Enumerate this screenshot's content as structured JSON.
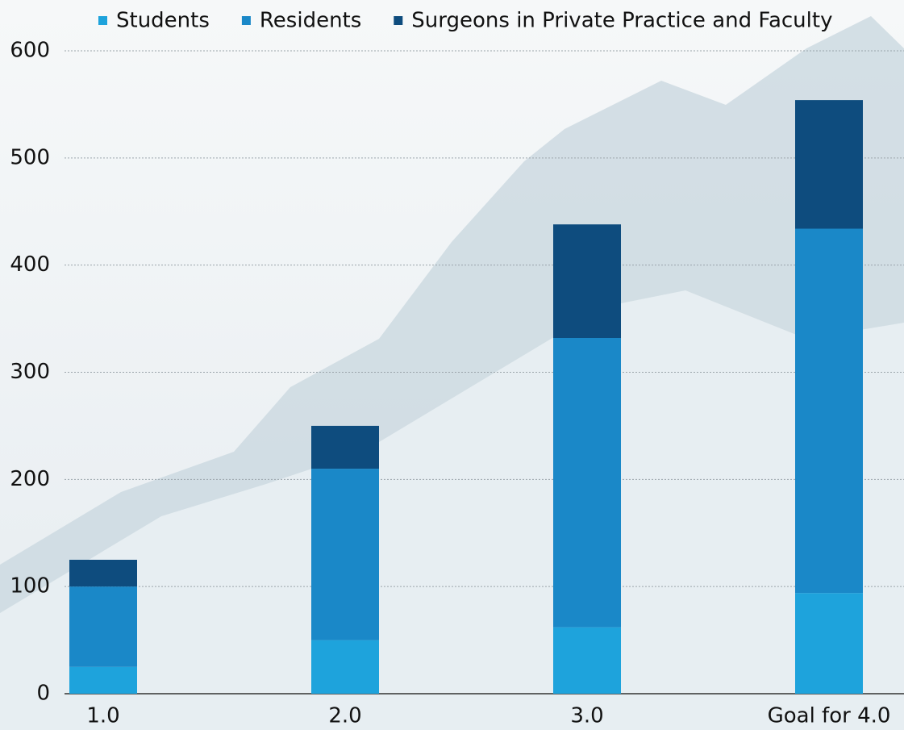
{
  "chart_data": {
    "type": "stacked-bar",
    "categories": [
      "1.0",
      "2.0",
      "3.0",
      "Goal for 4.0"
    ],
    "series": [
      {
        "name": "Students",
        "color": "#1ea3dc",
        "values": [
          25,
          50,
          62,
          94
        ]
      },
      {
        "name": "Residents",
        "color": "#1a88c8",
        "values": [
          75,
          160,
          270,
          340
        ]
      },
      {
        "name": "Surgeons in Private Practice and Faculty",
        "color": "#0e4c7e",
        "values": [
          25,
          40,
          106,
          120
        ]
      }
    ],
    "ylim": [
      0,
      600
    ],
    "yticks": [
      0,
      100,
      200,
      300,
      400,
      500,
      600
    ],
    "grid": true,
    "legend": "top"
  }
}
